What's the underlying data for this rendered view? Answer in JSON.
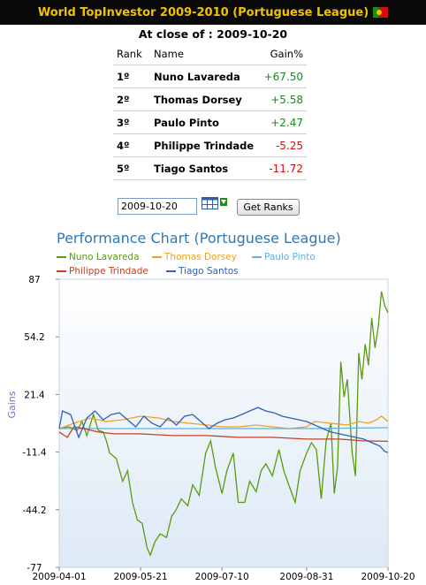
{
  "header": {
    "title": "World TopInvestor 2009-2010 (Portuguese League)"
  },
  "close_line": "At close of : 2009-10-20",
  "table": {
    "headers": {
      "rank": "Rank",
      "name": "Name",
      "gain": "Gain%"
    },
    "rows": [
      {
        "rank": "1º",
        "name": "Nuno Lavareda",
        "gain": "+67.50",
        "positive": true
      },
      {
        "rank": "2º",
        "name": "Thomas Dorsey",
        "gain": "+5.58",
        "positive": true
      },
      {
        "rank": "3º",
        "name": "Paulo Pinto",
        "gain": "+2.47",
        "positive": true
      },
      {
        "rank": "4º",
        "name": "Philippe Trindade",
        "gain": "-5.25",
        "positive": false
      },
      {
        "rank": "5º",
        "name": "Tiago Santos",
        "gain": "-11.72",
        "positive": false
      }
    ]
  },
  "form": {
    "date_value": "2009-10-20",
    "button_label": "Get Ranks",
    "calendar_icon": "calendar-icon"
  },
  "colors": {
    "header_bg": "#0a0a0a",
    "header_text": "#f2c200",
    "positive": "#1a8a1a",
    "negative": "#d01010",
    "title": "#2e78b8"
  },
  "chart_data": {
    "type": "line",
    "title": "Performance Chart (Portuguese League)",
    "ylabel": "Gains",
    "xlabel": "",
    "ylim": [
      -77,
      87
    ],
    "yticks": [
      "87",
      "54.2",
      "21.4",
      "-11.4",
      "-44.2",
      "-77"
    ],
    "xticks": [
      "2009-04-01",
      "2009-05-21",
      "2009-07-10",
      "2009-08-31",
      "2009-10-20"
    ],
    "x_range": [
      "2009-04-01",
      "2009-10-20"
    ],
    "legend_position": "top",
    "series": [
      {
        "name": "Nuno Lavareda",
        "color": "#5a9a10",
        "points": [
          [
            "2009-04-01",
            2
          ],
          [
            "2009-04-07",
            3
          ],
          [
            "2009-04-12",
            1
          ],
          [
            "2009-04-15",
            6
          ],
          [
            "2009-04-18",
            -2
          ],
          [
            "2009-04-22",
            10
          ],
          [
            "2009-04-25",
            1
          ],
          [
            "2009-04-28",
            0
          ],
          [
            "2009-04-30",
            -5
          ],
          [
            "2009-05-02",
            -12
          ],
          [
            "2009-05-06",
            -15
          ],
          [
            "2009-05-10",
            -28
          ],
          [
            "2009-05-13",
            -22
          ],
          [
            "2009-05-16",
            -40
          ],
          [
            "2009-05-19",
            -50
          ],
          [
            "2009-05-22",
            -52
          ],
          [
            "2009-05-25",
            -66
          ],
          [
            "2009-05-27",
            -70
          ],
          [
            "2009-05-30",
            -62
          ],
          [
            "2009-06-02",
            -58
          ],
          [
            "2009-06-06",
            -60
          ],
          [
            "2009-06-09",
            -48
          ],
          [
            "2009-06-12",
            -44
          ],
          [
            "2009-06-15",
            -38
          ],
          [
            "2009-06-19",
            -42
          ],
          [
            "2009-06-22",
            -30
          ],
          [
            "2009-06-26",
            -36
          ],
          [
            "2009-06-30",
            -12
          ],
          [
            "2009-07-03",
            -5
          ],
          [
            "2009-07-06",
            -20
          ],
          [
            "2009-07-10",
            -35
          ],
          [
            "2009-07-13",
            -22
          ],
          [
            "2009-07-17",
            -12
          ],
          [
            "2009-07-20",
            -40
          ],
          [
            "2009-07-24",
            -40
          ],
          [
            "2009-07-27",
            -28
          ],
          [
            "2009-07-31",
            -34
          ],
          [
            "2009-08-03",
            -22
          ],
          [
            "2009-08-06",
            -18
          ],
          [
            "2009-08-10",
            -25
          ],
          [
            "2009-08-14",
            -10
          ],
          [
            "2009-08-17",
            -22
          ],
          [
            "2009-08-20",
            -30
          ],
          [
            "2009-08-24",
            -40
          ],
          [
            "2009-08-27",
            -22
          ],
          [
            "2009-08-31",
            -12
          ],
          [
            "2009-09-03",
            -6
          ],
          [
            "2009-09-06",
            -10
          ],
          [
            "2009-09-09",
            -38
          ],
          [
            "2009-09-12",
            -5
          ],
          [
            "2009-09-15",
            5
          ],
          [
            "2009-09-17",
            -35
          ],
          [
            "2009-09-19",
            -20
          ],
          [
            "2009-09-21",
            40
          ],
          [
            "2009-09-23",
            20
          ],
          [
            "2009-09-25",
            30
          ],
          [
            "2009-09-28",
            -12
          ],
          [
            "2009-09-30",
            -25
          ],
          [
            "2009-10-02",
            45
          ],
          [
            "2009-10-04",
            30
          ],
          [
            "2009-10-06",
            50
          ],
          [
            "2009-10-08",
            38
          ],
          [
            "2009-10-10",
            65
          ],
          [
            "2009-10-12",
            48
          ],
          [
            "2009-10-14",
            60
          ],
          [
            "2009-10-16",
            80
          ],
          [
            "2009-10-18",
            72
          ],
          [
            "2009-10-20",
            68
          ]
        ]
      },
      {
        "name": "Thomas Dorsey",
        "color": "#f0a020",
        "points": [
          [
            "2009-04-01",
            2
          ],
          [
            "2009-04-10",
            5
          ],
          [
            "2009-04-20",
            8
          ],
          [
            "2009-04-30",
            6
          ],
          [
            "2009-05-10",
            7
          ],
          [
            "2009-05-21",
            9
          ],
          [
            "2009-06-01",
            8
          ],
          [
            "2009-06-10",
            6
          ],
          [
            "2009-06-20",
            5
          ],
          [
            "2009-07-01",
            4
          ],
          [
            "2009-07-10",
            3
          ],
          [
            "2009-07-20",
            3
          ],
          [
            "2009-07-31",
            4
          ],
          [
            "2009-08-10",
            3
          ],
          [
            "2009-08-20",
            2
          ],
          [
            "2009-08-31",
            3
          ],
          [
            "2009-09-05",
            6
          ],
          [
            "2009-09-15",
            5
          ],
          [
            "2009-09-25",
            4
          ],
          [
            "2009-10-02",
            6
          ],
          [
            "2009-10-08",
            5
          ],
          [
            "2009-10-13",
            7
          ],
          [
            "2009-10-16",
            9
          ],
          [
            "2009-10-20",
            6
          ]
        ]
      },
      {
        "name": "Paulo Pinto",
        "color": "#60b0e0",
        "points": [
          [
            "2009-04-01",
            2
          ],
          [
            "2009-05-01",
            2
          ],
          [
            "2009-06-01",
            2
          ],
          [
            "2009-07-01",
            2
          ],
          [
            "2009-08-01",
            2
          ],
          [
            "2009-09-01",
            2
          ],
          [
            "2009-10-01",
            2.3
          ],
          [
            "2009-10-20",
            2.5
          ]
        ]
      },
      {
        "name": "Philippe Trindade",
        "color": "#c84020",
        "points": [
          [
            "2009-04-01",
            0
          ],
          [
            "2009-04-06",
            -3
          ],
          [
            "2009-04-10",
            3
          ],
          [
            "2009-04-16",
            2
          ],
          [
            "2009-04-25",
            0
          ],
          [
            "2009-05-05",
            -1
          ],
          [
            "2009-05-20",
            -1
          ],
          [
            "2009-06-10",
            -2
          ],
          [
            "2009-07-01",
            -2
          ],
          [
            "2009-07-20",
            -3
          ],
          [
            "2009-08-10",
            -3
          ],
          [
            "2009-08-31",
            -4
          ],
          [
            "2009-09-20",
            -4
          ],
          [
            "2009-10-05",
            -5
          ],
          [
            "2009-10-20",
            -5.25
          ]
        ]
      },
      {
        "name": "Tiago Santos",
        "color": "#3060b8",
        "points": [
          [
            "2009-04-01",
            2
          ],
          [
            "2009-04-03",
            12
          ],
          [
            "2009-04-08",
            10
          ],
          [
            "2009-04-13",
            -3
          ],
          [
            "2009-04-18",
            8
          ],
          [
            "2009-04-23",
            12
          ],
          [
            "2009-04-28",
            7
          ],
          [
            "2009-05-03",
            10
          ],
          [
            "2009-05-08",
            11
          ],
          [
            "2009-05-13",
            7
          ],
          [
            "2009-05-18",
            3
          ],
          [
            "2009-05-23",
            9
          ],
          [
            "2009-05-28",
            5
          ],
          [
            "2009-06-02",
            3
          ],
          [
            "2009-06-07",
            8
          ],
          [
            "2009-06-12",
            4
          ],
          [
            "2009-06-17",
            9
          ],
          [
            "2009-06-22",
            10
          ],
          [
            "2009-06-27",
            6
          ],
          [
            "2009-07-02",
            2
          ],
          [
            "2009-07-07",
            5
          ],
          [
            "2009-07-12",
            7
          ],
          [
            "2009-07-17",
            8
          ],
          [
            "2009-07-22",
            10
          ],
          [
            "2009-07-27",
            12
          ],
          [
            "2009-08-01",
            14
          ],
          [
            "2009-08-06",
            12
          ],
          [
            "2009-08-11",
            11
          ],
          [
            "2009-08-16",
            9
          ],
          [
            "2009-08-21",
            8
          ],
          [
            "2009-08-26",
            7
          ],
          [
            "2009-08-31",
            6
          ],
          [
            "2009-09-05",
            4
          ],
          [
            "2009-09-10",
            2
          ],
          [
            "2009-09-15",
            0
          ],
          [
            "2009-09-20",
            -1
          ],
          [
            "2009-09-25",
            -2
          ],
          [
            "2009-09-30",
            -3
          ],
          [
            "2009-10-05",
            -4
          ],
          [
            "2009-10-10",
            -6
          ],
          [
            "2009-10-15",
            -8
          ],
          [
            "2009-10-18",
            -11
          ],
          [
            "2009-10-20",
            -11.7
          ]
        ]
      }
    ]
  }
}
